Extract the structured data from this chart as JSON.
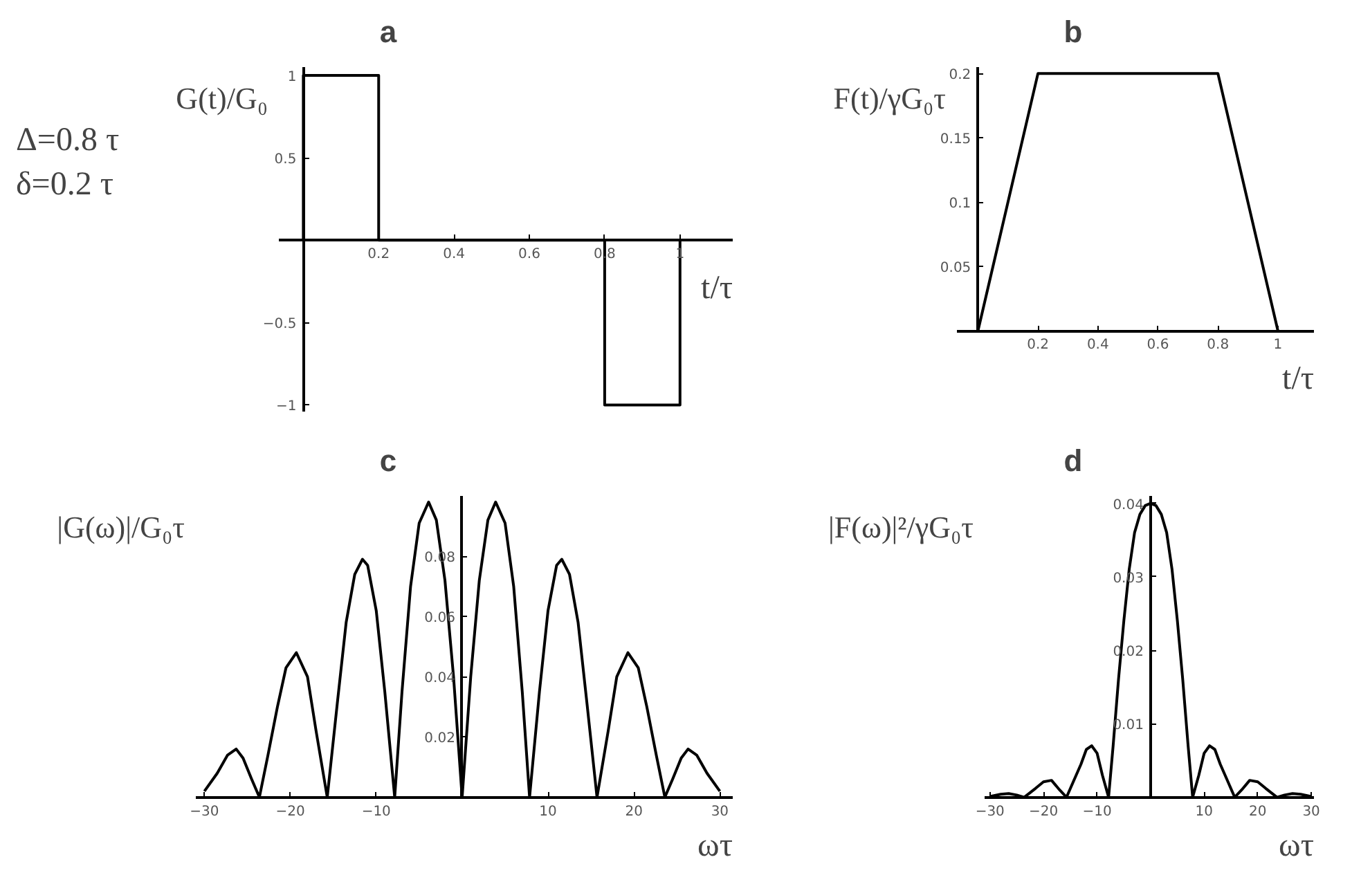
{
  "chart_data": [
    {
      "type": "line",
      "title": "a",
      "xlabel": "t/τ",
      "ylabel": "G(t)/G₀",
      "color": "#000000",
      "annotations": [
        "Δ=0.8 τ",
        "δ=0.2 τ"
      ],
      "x": [
        0,
        0,
        0.2,
        0.2,
        0.8,
        0.8,
        1,
        1
      ],
      "values": [
        0,
        1,
        1,
        0,
        0,
        -1,
        -1,
        0
      ],
      "xlim": [
        -0.065,
        1.14
      ],
      "ylim": [
        -1.04,
        1.05
      ],
      "xticks": [
        0.2,
        0.4,
        0.6,
        0.8,
        1
      ],
      "yticks": [
        {
          "value": -1,
          "label": "−1"
        },
        {
          "value": -0.5,
          "label": "−0.5"
        },
        0.5,
        1
      ]
    },
    {
      "type": "line",
      "title": "b",
      "xlabel": "t/τ",
      "ylabel": "F(t)/γG₀τ",
      "color": "#000000",
      "x": [
        0,
        0.2,
        0.8,
        1
      ],
      "values": [
        0,
        0.2,
        0.2,
        0
      ],
      "xlim": [
        -0.07,
        1.12
      ],
      "ylim": [
        0,
        0.205
      ],
      "xticks": [
        0.2,
        0.4,
        0.6,
        0.8,
        1
      ],
      "yticks": [
        0.05,
        0.1,
        0.15,
        0.2
      ]
    },
    {
      "type": "line",
      "title": "c",
      "xlabel": "ωτ",
      "ylabel": "|G(ω)|/G₀τ",
      "color": "#000000",
      "x": [
        -30,
        -28.5,
        -27.3,
        -26.3,
        -25.5,
        -24.5,
        -23.6,
        -22.6,
        -21.5,
        -20.5,
        -19.3,
        -18,
        -17,
        -15.7,
        -14.5,
        -13.5,
        -12.5,
        -11.6,
        -11,
        -10,
        -9,
        -7.85,
        -7,
        -6,
        -5,
        -3.9,
        -3,
        -2,
        -1,
        0,
        1,
        2,
        3,
        3.9,
        5,
        6,
        7,
        7.85,
        9,
        10,
        11,
        11.6,
        12.5,
        13.5,
        14.5,
        15.7,
        17,
        18,
        19.3,
        20.5,
        21.5,
        22.6,
        23.6,
        24.5,
        25.5,
        26.3,
        27.3,
        28.5,
        30
      ],
      "values": [
        0.002,
        0.008,
        0.014,
        0.016,
        0.013,
        0.006,
        0,
        0.014,
        0.03,
        0.043,
        0.048,
        0.04,
        0.022,
        0,
        0.032,
        0.058,
        0.074,
        0.079,
        0.077,
        0.062,
        0.035,
        0,
        0.035,
        0.07,
        0.091,
        0.098,
        0.092,
        0.072,
        0.04,
        0,
        0.04,
        0.072,
        0.092,
        0.098,
        0.091,
        0.07,
        0.035,
        0,
        0.035,
        0.062,
        0.077,
        0.079,
        0.074,
        0.058,
        0.032,
        0,
        0.022,
        0.04,
        0.048,
        0.043,
        0.03,
        0.014,
        0,
        0.006,
        0.013,
        0.016,
        0.014,
        0.008,
        0.002
      ],
      "xlim": [
        -31,
        31.5
      ],
      "ylim": [
        0,
        0.1
      ],
      "xticks": [
        {
          "value": -30,
          "label": "−30"
        },
        {
          "value": -20,
          "label": "−20"
        },
        {
          "value": -10,
          "label": "−10"
        },
        10,
        20,
        30
      ],
      "yticks": [
        0.02,
        0.04,
        0.06,
        0.08
      ]
    },
    {
      "type": "line",
      "title": "d",
      "xlabel": "ωτ",
      "ylabel": "|F(ω)|²/γG₀τ",
      "color": "#000000",
      "x": [
        -30,
        -28,
        -26.5,
        -25,
        -23.6,
        -21.5,
        -20,
        -18.5,
        -17,
        -15.7,
        -14.5,
        -13,
        -12,
        -11,
        -10,
        -9,
        -7.85,
        -7,
        -6,
        -5,
        -4,
        -3,
        -2,
        -1,
        0,
        1,
        2,
        3,
        4,
        5,
        6,
        7,
        7.85,
        9,
        10,
        11,
        12,
        13,
        14.5,
        15.7,
        17,
        18.5,
        20,
        21.5,
        23.6,
        25,
        26.5,
        28,
        30
      ],
      "values": [
        0.0001,
        0.0004,
        0.0005,
        0.0003,
        0,
        0.0012,
        0.0021,
        0.0023,
        0.001,
        0,
        0.002,
        0.0045,
        0.0065,
        0.007,
        0.006,
        0.003,
        0,
        0.007,
        0.016,
        0.024,
        0.031,
        0.036,
        0.0385,
        0.0397,
        0.04,
        0.0397,
        0.0385,
        0.036,
        0.031,
        0.024,
        0.016,
        0.007,
        0,
        0.003,
        0.006,
        0.007,
        0.0065,
        0.0045,
        0.002,
        0,
        0.001,
        0.0023,
        0.0021,
        0.0012,
        0,
        0.0003,
        0.0005,
        0.0004,
        0.0001
      ],
      "xlim": [
        -31,
        30.5
      ],
      "ylim": [
        0,
        0.041
      ],
      "xticks": [
        {
          "value": -30,
          "label": "−30"
        },
        {
          "value": -20,
          "label": "−20"
        },
        {
          "value": -10,
          "label": "−10"
        },
        10,
        20,
        30
      ],
      "yticks": [
        0.01,
        0.02,
        0.03,
        0.04
      ]
    }
  ]
}
